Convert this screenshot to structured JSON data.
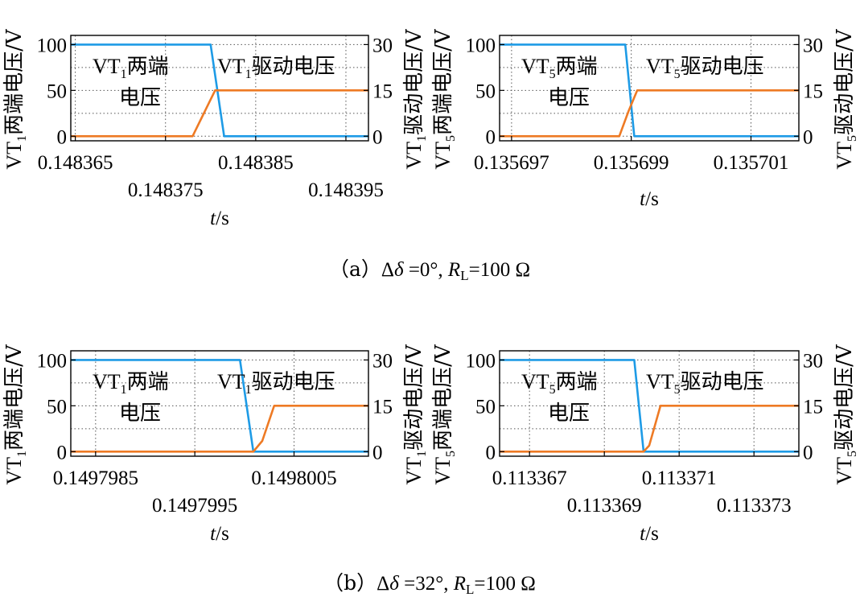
{
  "captions": [
    {
      "open": "（a）",
      "delta": "Δ",
      "delta_sym": "δ",
      "eq": " =0°, ",
      "r": "R",
      "r_sub": "L",
      "r_rest": "=100 Ω"
    },
    {
      "open": "（b）",
      "delta": "Δ",
      "delta_sym": "δ",
      "eq": " =32°, ",
      "r": "R",
      "r_sub": "L",
      "r_rest": "=100 Ω"
    }
  ],
  "colors": {
    "blue": "#1E9BE6",
    "orange": "#EE7A24"
  },
  "chart_data": [
    {
      "type": "line",
      "xlabel": {
        "italic": "t",
        "rest": "/s"
      },
      "ylabel_left": {
        "pre": "VT",
        "sub": "1",
        "post": "两端电压/V"
      },
      "ylabel_right": {
        "pre": "VT",
        "sub": "1",
        "post": "驱动电压/V"
      },
      "x_range": [
        0.1483645,
        0.1483975
      ],
      "ylim_left": [
        -5,
        110
      ],
      "ylim_right": [
        -1.5,
        33
      ],
      "yticks_left": [
        "100",
        "50",
        "0"
      ],
      "yticks_left_values": [
        100,
        50,
        0
      ],
      "yticks_right": [
        "30",
        "15",
        "0"
      ],
      "yticks_right_values": [
        30,
        15,
        0
      ],
      "xticks_top": [
        {
          "value": 0.148365,
          "label": "0.148365"
        },
        {
          "value": 0.148385,
          "label": "0.148385"
        }
      ],
      "xticks_bottom": [
        {
          "value": 0.148375,
          "label": "0.148375"
        },
        {
          "value": 0.148395,
          "label": "0.148395"
        }
      ],
      "annotations": {
        "terminal": {
          "pre": "VT",
          "sub": "1",
          "post": "两端",
          "line2": "电压"
        },
        "drive": {
          "pre": "VT",
          "sub": "1",
          "post": "驱动电压"
        }
      },
      "series": [
        {
          "axis": "left",
          "color": "blue",
          "x": [
            0.1483645,
            0.14838,
            0.1483815,
            0.1483975
          ],
          "y": [
            100,
            100,
            0,
            0
          ]
        },
        {
          "axis": "right",
          "color": "orange",
          "x": [
            0.1483645,
            0.148378,
            0.148379,
            0.1483805,
            0.1483975
          ],
          "y": [
            0,
            0,
            6,
            15,
            15
          ]
        }
      ]
    },
    {
      "type": "line",
      "xlabel": {
        "italic": "t",
        "rest": "/s"
      },
      "ylabel_left": {
        "pre": "VT",
        "sub": "5",
        "post": "两端电压/V"
      },
      "ylabel_right": {
        "pre": "VT",
        "sub": "5",
        "post": "驱动电压/V"
      },
      "x_range": [
        0.1356968,
        0.1357018
      ],
      "ylim_left": [
        -5,
        110
      ],
      "ylim_right": [
        -1.5,
        33
      ],
      "yticks_left": [
        "100",
        "50",
        "0"
      ],
      "yticks_left_values": [
        100,
        50,
        0
      ],
      "yticks_right": [
        "30",
        "15",
        "0"
      ],
      "yticks_right_values": [
        30,
        15,
        0
      ],
      "xticks_top": [
        {
          "value": 0.135697,
          "label": "0.135697"
        },
        {
          "value": 0.135699,
          "label": "0.135699"
        },
        {
          "value": 0.135701,
          "label": "0.135701"
        }
      ],
      "xticks_bottom": [],
      "annotations": {
        "terminal": {
          "pre": "VT",
          "sub": "5",
          "post": "两端",
          "line2": "电压"
        },
        "drive": {
          "pre": "VT",
          "sub": "5",
          "post": "驱动电压"
        }
      },
      "series": [
        {
          "axis": "left",
          "color": "blue",
          "x": [
            0.1356968,
            0.1356989,
            0.13569905,
            0.1357018
          ],
          "y": [
            100,
            100,
            0,
            0
          ]
        },
        {
          "axis": "right",
          "color": "orange",
          "x": [
            0.1356968,
            0.1356988,
            0.13569895,
            0.1356991,
            0.1357018
          ],
          "y": [
            0,
            0,
            8,
            15,
            15
          ]
        }
      ]
    },
    {
      "type": "line",
      "xlabel": {
        "italic": "t",
        "rest": "/s"
      },
      "ylabel_left": {
        "pre": "VT",
        "sub": "1",
        "post": "两端电压/V"
      },
      "ylabel_right": {
        "pre": "VT",
        "sub": "1",
        "post": "驱动电压/V"
      },
      "x_range": [
        0.14979825,
        0.14980125
      ],
      "ylim_left": [
        -5,
        110
      ],
      "ylim_right": [
        -1.5,
        33
      ],
      "yticks_left": [
        "100",
        "50",
        "0"
      ],
      "yticks_left_values": [
        100,
        50,
        0
      ],
      "yticks_right": [
        "30",
        "15",
        "0"
      ],
      "yticks_right_values": [
        30,
        15,
        0
      ],
      "xticks_top": [
        {
          "value": 0.1497985,
          "label": "0.1497985"
        },
        {
          "value": 0.1498005,
          "label": "0.1498005"
        }
      ],
      "xticks_bottom": [
        {
          "value": 0.1497995,
          "label": "0.1497995"
        }
      ],
      "annotations": {
        "terminal": {
          "pre": "VT",
          "sub": "1",
          "post": "两端",
          "line2": "电压"
        },
        "drive": {
          "pre": "VT",
          "sub": "1",
          "post": "驱动电压"
        }
      },
      "series": [
        {
          "axis": "left",
          "color": "blue",
          "x": [
            0.14979825,
            0.149799955,
            0.14980009,
            0.14980125
          ],
          "y": [
            100,
            100,
            0,
            0
          ]
        },
        {
          "axis": "right",
          "color": "orange",
          "x": [
            0.14979825,
            0.14980009,
            0.14980018,
            0.1498003,
            0.14980125
          ],
          "y": [
            0,
            0,
            3.5,
            15,
            15
          ]
        }
      ]
    },
    {
      "type": "line",
      "xlabel": {
        "italic": "t",
        "rest": "/s"
      },
      "ylabel_left": {
        "pre": "VT",
        "sub": "5",
        "post": "两端电压/V"
      },
      "ylabel_right": {
        "pre": "VT",
        "sub": "5",
        "post": "驱动电压/V"
      },
      "x_range": [
        0.1133662,
        0.1133742
      ],
      "ylim_left": [
        -5,
        110
      ],
      "ylim_right": [
        -1.5,
        33
      ],
      "yticks_left": [
        "100",
        "50",
        "0"
      ],
      "yticks_left_values": [
        100,
        50,
        0
      ],
      "yticks_right": [
        "30",
        "15",
        "0"
      ],
      "yticks_right_values": [
        30,
        15,
        0
      ],
      "xticks_top": [
        {
          "value": 0.113367,
          "label": "0.113367"
        },
        {
          "value": 0.113371,
          "label": "0.113371"
        }
      ],
      "xticks_bottom": [
        {
          "value": 0.113369,
          "label": "0.113369"
        },
        {
          "value": 0.113373,
          "label": "0.113373"
        }
      ],
      "annotations": {
        "terminal": {
          "pre": "VT",
          "sub": "5",
          "post": "两端",
          "line2": "电压"
        },
        "drive": {
          "pre": "VT",
          "sub": "5",
          "post": "驱动电压"
        }
      },
      "series": [
        {
          "axis": "left",
          "color": "blue",
          "x": [
            0.1133662,
            0.1133698,
            0.11337005,
            0.1133742
          ],
          "y": [
            100,
            100,
            0,
            0
          ]
        },
        {
          "axis": "right",
          "color": "orange",
          "x": [
            0.1133662,
            0.11337005,
            0.1133702,
            0.1133705,
            0.1133742
          ],
          "y": [
            0,
            0,
            2,
            15,
            15
          ]
        }
      ]
    }
  ]
}
